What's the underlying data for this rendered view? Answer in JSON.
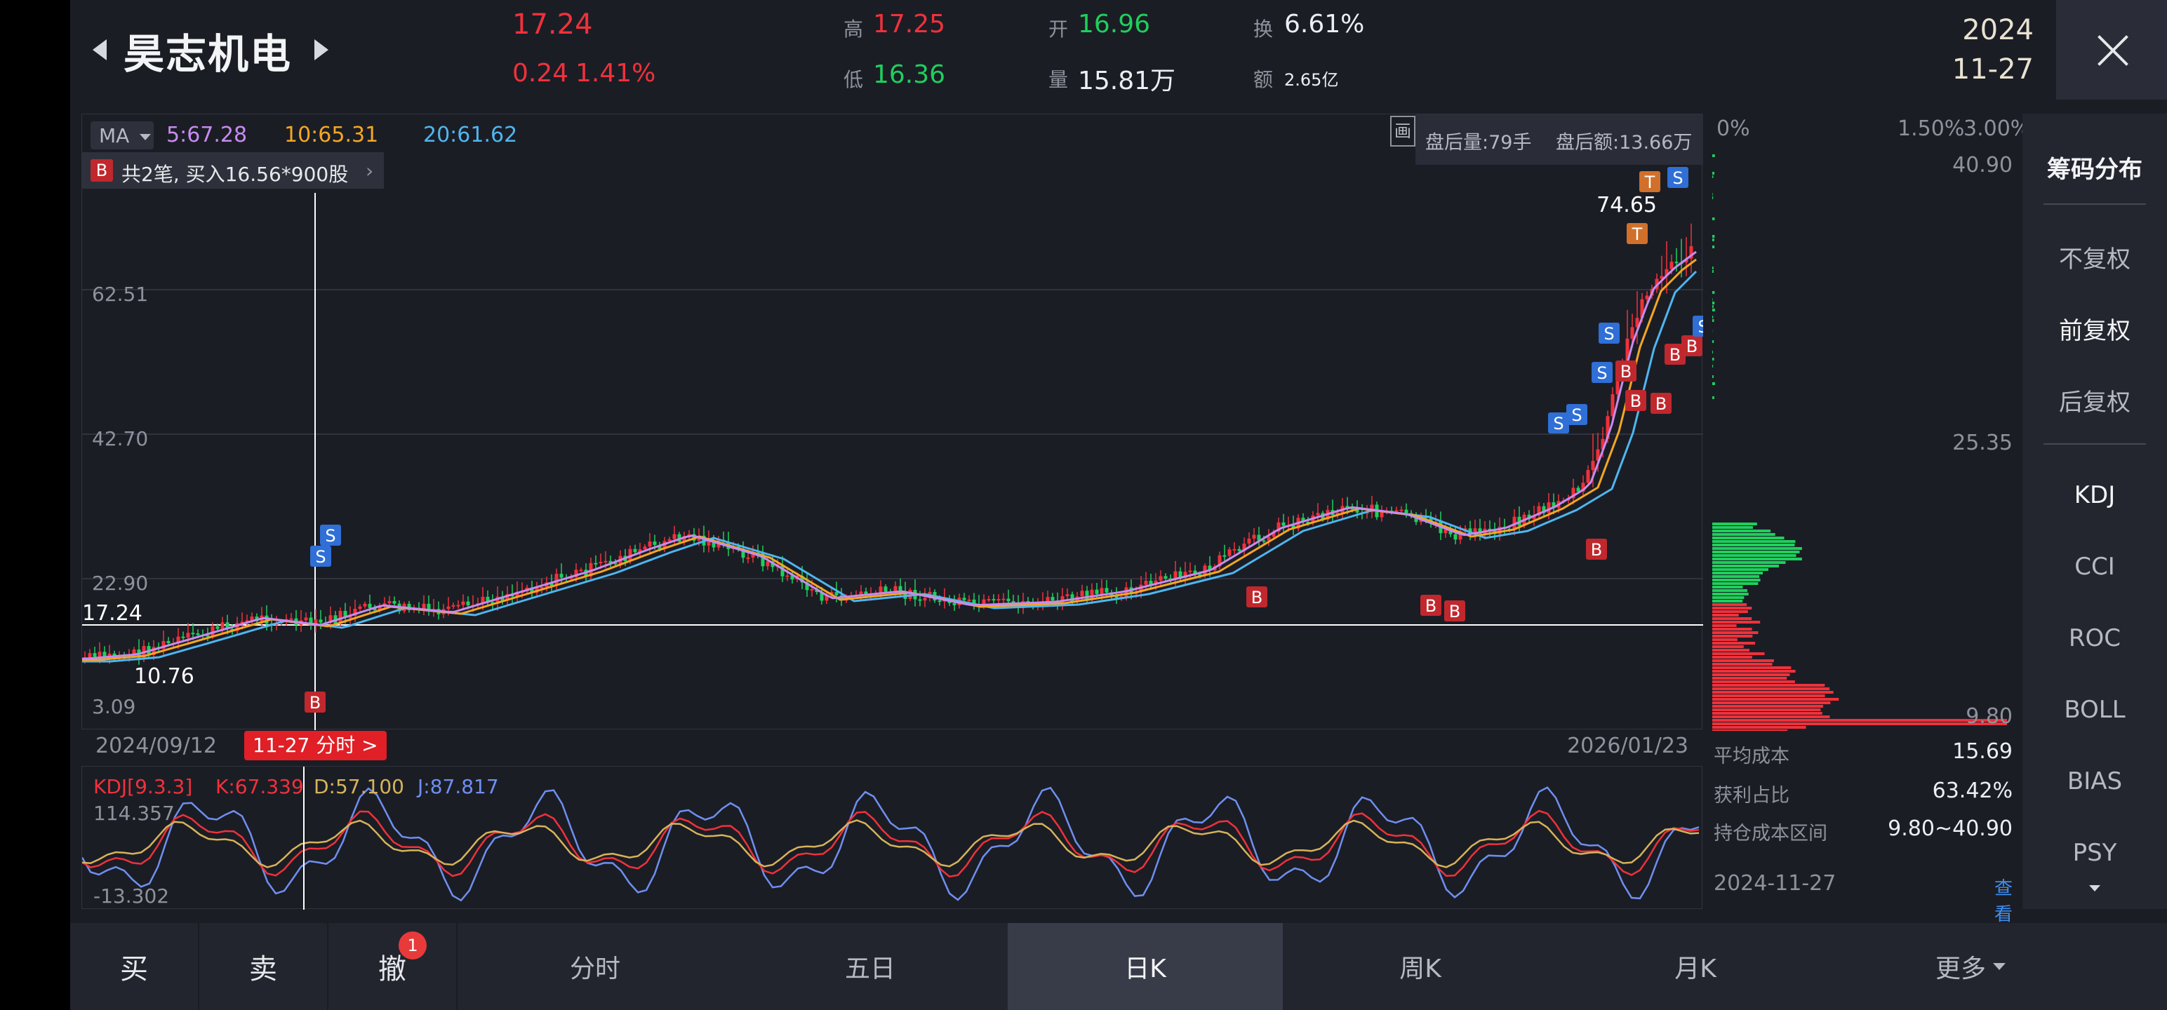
{
  "header": {
    "stock_name": "昊志机电",
    "last_price": "17.24",
    "change": "0.24",
    "change_pct": "1.41%",
    "high_label": "高",
    "high_value": "17.25",
    "low_label": "低",
    "low_value": "16.36",
    "open_label": "开",
    "open_value": "16.96",
    "volume_label": "量",
    "volume_value": "15.81万",
    "turnover_label": "换",
    "turnover_value": "6.61%",
    "amount_label": "额",
    "amount_value": "2.65亿",
    "date_year": "2024",
    "date_md": "11-27"
  },
  "main_chart": {
    "ma_selector": "MA",
    "ma5": "5:67.28",
    "ma10": "10:65.31",
    "ma20": "20:61.62",
    "after_hours_volume": "盘后量:79手",
    "after_hours_amount": "盘后额:13.66万",
    "draw_tool_label": "画",
    "trade_note_badge": "B",
    "trade_note": "共2笔, 买入16.56*900股",
    "y_labels": [
      "62.51",
      "42.70",
      "22.90",
      "3.09"
    ],
    "current_price_label": "17.24",
    "high_mark": "74.65",
    "low_mark": "10.76",
    "start_date": "2024/09/12",
    "end_date": "2026/01/23",
    "cursor_tag": "11-27 分时 >",
    "colors": {
      "ma5": "#c78bf0",
      "ma10": "#f5a623",
      "ma20": "#4fb6f0",
      "up": "#f0313b",
      "down": "#1fcf5d"
    }
  },
  "kdj": {
    "title": "KDJ[9.3.3]",
    "k": "K:67.339",
    "d": "D:57.100",
    "j": "J:87.817",
    "max": "114.357",
    "min": "-13.302"
  },
  "distribution": {
    "x_labels": [
      "0%",
      "1.50%",
      "3.00%"
    ],
    "top_price": "40.90",
    "mid_price": "25.35",
    "bottom_price": "9.80",
    "avg_cost_label": "平均成本",
    "avg_cost_value": "15.69",
    "profit_ratio_label": "获利占比",
    "profit_ratio_value": "63.42%",
    "cost_range_label": "持仓成本区间",
    "cost_range_value": "9.80~40.90",
    "date": "2024-11-27",
    "detail_link": "查看详情"
  },
  "sidebar": {
    "items": [
      "筹码分布",
      "不复权",
      "前复权",
      "后复权",
      "KDJ",
      "CCI",
      "ROC",
      "BOLL",
      "BIAS",
      "PSY"
    ]
  },
  "bottom": {
    "buy": "买",
    "sell": "卖",
    "cancel": "撤",
    "cancel_badge": "1",
    "tabs": [
      "分时",
      "五日",
      "日K",
      "周K",
      "月K",
      "更多"
    ]
  }
}
